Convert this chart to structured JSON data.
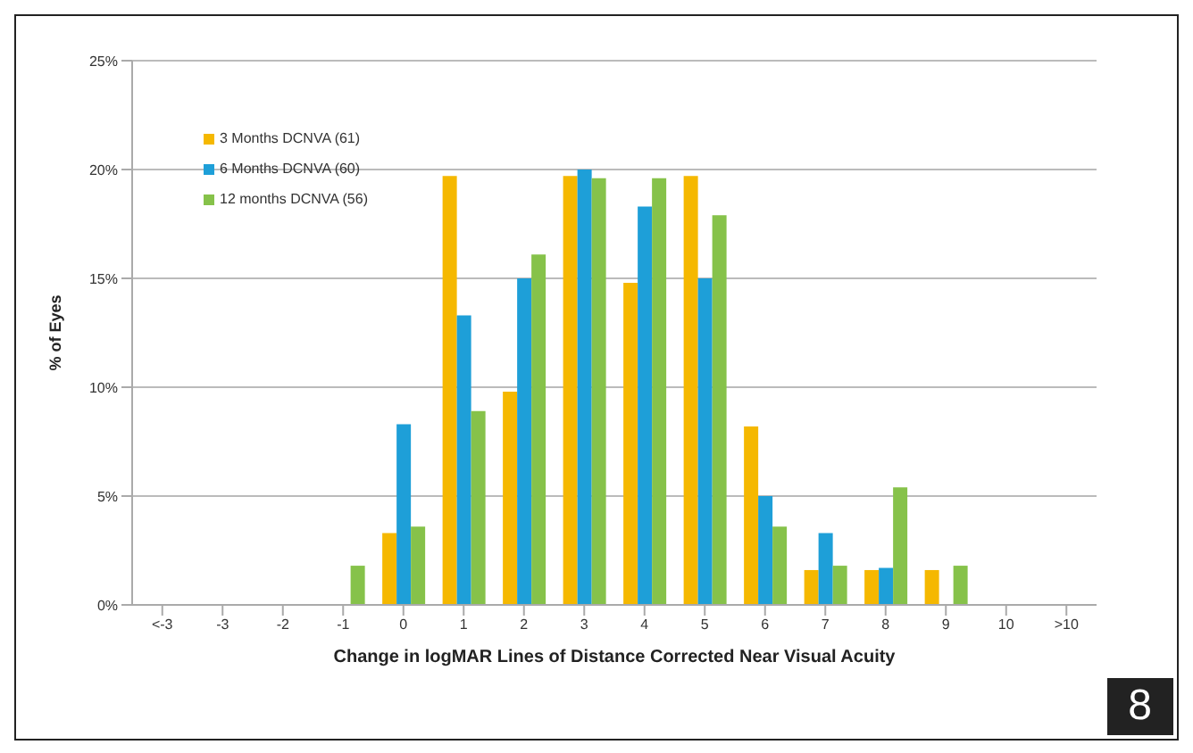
{
  "chart_data": {
    "type": "bar",
    "xlabel": "Change in logMAR Lines of Distance Corrected Near Visual Acuity",
    "ylabel": "% of Eyes",
    "categories": [
      "<-3",
      "-3",
      "-2",
      "-1",
      "0",
      "1",
      "2",
      "3",
      "4",
      "5",
      "6",
      "7",
      "8",
      "9",
      "10",
      ">10"
    ],
    "series": [
      {
        "name": "3 Months DCNVA (61)",
        "color": "#f5b800",
        "values": [
          0,
          0,
          0,
          0,
          3.3,
          19.7,
          9.8,
          19.7,
          14.8,
          19.7,
          8.2,
          1.6,
          1.6,
          1.6,
          0,
          0
        ]
      },
      {
        "name": "6 Months DCNVA (60)",
        "color": "#1e9fd8",
        "values": [
          0,
          0,
          0,
          0,
          8.3,
          13.3,
          15,
          20,
          18.3,
          15,
          5,
          3.3,
          1.7,
          0,
          0,
          0
        ]
      },
      {
        "name": "12 months DCNVA (56)",
        "color": "#86c24a",
        "values": [
          0,
          0,
          0,
          1.8,
          3.6,
          8.9,
          16.1,
          19.6,
          19.6,
          17.9,
          3.6,
          1.8,
          5.4,
          1.8,
          0,
          0
        ]
      }
    ],
    "ylim": [
      0,
      25
    ],
    "yticks": [
      {
        "value": 0,
        "label": "0%"
      },
      {
        "value": 5,
        "label": "5%"
      },
      {
        "value": 10,
        "label": "10%"
      },
      {
        "value": 15,
        "label": "15%"
      },
      {
        "value": 20,
        "label": "20%"
      },
      {
        "value": 25,
        "label": "25%"
      }
    ],
    "grid": "y",
    "legend": "top left",
    "annotations": [
      "8"
    ]
  }
}
